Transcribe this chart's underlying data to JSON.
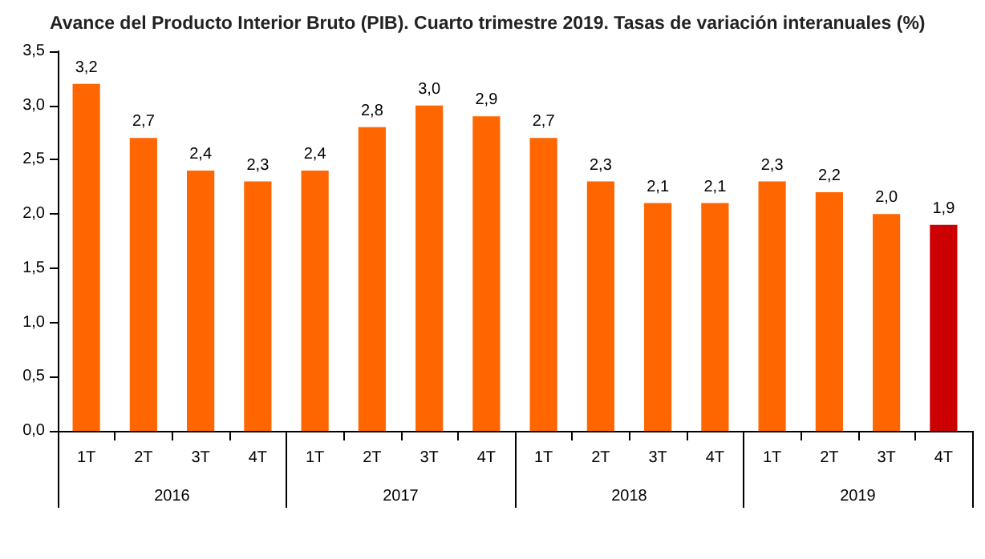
{
  "chart_data": {
    "type": "bar",
    "title": "Avance del Producto Interior Bruto (PIB). Cuarto trimestre 2019. Tasas de variación interanuales (%)",
    "categories": [
      "1T",
      "2T",
      "3T",
      "4T",
      "1T",
      "2T",
      "3T",
      "4T",
      "1T",
      "2T",
      "3T",
      "4T",
      "1T",
      "2T",
      "3T",
      "4T"
    ],
    "values": [
      3.2,
      2.7,
      2.4,
      2.3,
      2.4,
      2.8,
      3.0,
      2.9,
      2.7,
      2.3,
      2.1,
      2.1,
      2.3,
      2.2,
      2.0,
      1.9
    ],
    "colors": [
      "#ff6600",
      "#ff6600",
      "#ff6600",
      "#ff6600",
      "#ff6600",
      "#ff6600",
      "#ff6600",
      "#ff6600",
      "#ff6600",
      "#ff6600",
      "#ff6600",
      "#ff6600",
      "#ff6600",
      "#ff6600",
      "#ff6600",
      "#cc0000"
    ],
    "annotations": [
      "2016",
      "2017",
      "2018",
      "2019"
    ],
    "ylim": [
      0,
      3.5
    ],
    "yticks": [
      {
        "value": 0,
        "label": "0,0"
      },
      {
        "value": 0.5,
        "label": "0,5"
      },
      {
        "value": 1,
        "label": "1,0"
      },
      {
        "value": 1.5,
        "label": "1,5"
      },
      {
        "value": 2,
        "label": "2,0"
      },
      {
        "value": 2.5,
        "label": "2,5"
      },
      {
        "value": 3,
        "label": "3,0"
      },
      {
        "value": 3.5,
        "label": "3,5"
      }
    ],
    "value_labels": [
      "3,2",
      "2,7",
      "2,4",
      "2,3",
      "2,4",
      "2,8",
      "3,0",
      "2,9",
      "2,7",
      "2,3",
      "2,1",
      "2,1",
      "2,3",
      "2,2",
      "2,0",
      "1,9"
    ],
    "grid": false
  }
}
